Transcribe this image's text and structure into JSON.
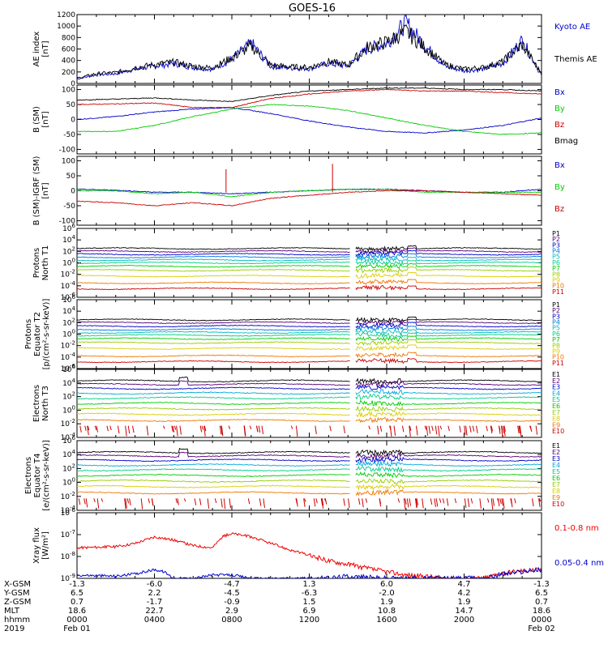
{
  "title": "GOES-16",
  "chart_data": [
    {
      "type": "line",
      "ylabel": "AE index [nT]",
      "ylim": [
        0,
        1200
      ],
      "yticks": [
        "0",
        "200",
        "400",
        "600",
        "800",
        "1000",
        "1200"
      ],
      "series": [
        {
          "name": "Kyoto AE",
          "color": "#0000cc",
          "x": [
            0,
            1,
            2,
            3,
            4,
            5,
            6,
            7,
            8,
            9,
            10,
            11,
            12,
            13,
            14,
            15,
            16,
            17,
            18,
            19,
            20,
            21,
            22,
            23,
            24
          ],
          "values": [
            80,
            150,
            170,
            250,
            300,
            350,
            280,
            250,
            420,
            700,
            300,
            270,
            260,
            350,
            300,
            600,
            700,
            1050,
            650,
            300,
            220,
            250,
            350,
            750,
            150
          ]
        },
        {
          "name": "Themis AE",
          "color": "#000000",
          "x": [
            0,
            1,
            2,
            3,
            4,
            5,
            6,
            7,
            8,
            9,
            10,
            11,
            12,
            13,
            14,
            15,
            16,
            17,
            18,
            19,
            20,
            21,
            22,
            23,
            24
          ],
          "values": [
            90,
            170,
            190,
            270,
            330,
            370,
            300,
            270,
            450,
            650,
            320,
            290,
            280,
            380,
            320,
            630,
            720,
            900,
            620,
            330,
            250,
            280,
            380,
            680,
            170
          ]
        }
      ]
    },
    {
      "type": "line",
      "ylabel": "B (SM) [nT]",
      "ylim": [
        -115,
        115
      ],
      "yticks": [
        "-100",
        "-50",
        "0",
        "50",
        "100"
      ],
      "series": [
        {
          "name": "Bx",
          "color": "#0000cc",
          "x": [
            0,
            2,
            4,
            6,
            8,
            10,
            12,
            14,
            16,
            18,
            20,
            22,
            24
          ],
          "values": [
            0,
            10,
            25,
            35,
            40,
            20,
            -5,
            -25,
            -40,
            -45,
            -35,
            -20,
            5
          ]
        },
        {
          "name": "By",
          "color": "#00cc00",
          "x": [
            0,
            2,
            4,
            6,
            8,
            10,
            12,
            14,
            16,
            18,
            20,
            22,
            24
          ],
          "values": [
            -40,
            -40,
            -20,
            10,
            35,
            50,
            45,
            30,
            5,
            -20,
            -40,
            -50,
            -45
          ]
        },
        {
          "name": "Bz",
          "color": "#cc0000",
          "x": [
            0,
            2,
            4,
            6,
            8,
            10,
            12,
            14,
            16,
            18,
            20,
            22,
            24
          ],
          "values": [
            50,
            52,
            55,
            40,
            40,
            70,
            85,
            95,
            100,
            95,
            95,
            90,
            85
          ]
        },
        {
          "name": "Bmag",
          "color": "#000000",
          "x": [
            0,
            2,
            4,
            6,
            8,
            10,
            12,
            14,
            16,
            18,
            20,
            22,
            24
          ],
          "values": [
            65,
            68,
            72,
            65,
            60,
            80,
            95,
            100,
            105,
            105,
            100,
            100,
            95
          ]
        }
      ]
    },
    {
      "type": "line",
      "ylabel": "B (SM)-IGRF (SM) [nT]",
      "ylim": [
        -115,
        115
      ],
      "yticks": [
        "-100",
        "-50",
        "0",
        "50",
        "100"
      ],
      "series": [
        {
          "name": "Bx",
          "color": "#0000cc",
          "x": [
            0,
            2,
            4,
            6,
            8,
            10,
            12,
            14,
            16,
            18,
            20,
            22,
            24
          ],
          "values": [
            5,
            2,
            -5,
            -5,
            -10,
            -5,
            0,
            5,
            5,
            0,
            -5,
            -5,
            5
          ]
        },
        {
          "name": "By",
          "color": "#00cc00",
          "x": [
            0,
            2,
            4,
            6,
            8,
            10,
            12,
            14,
            16,
            18,
            20,
            22,
            24
          ],
          "values": [
            0,
            0,
            -10,
            -5,
            -20,
            -5,
            0,
            5,
            5,
            -5,
            -5,
            -5,
            -5
          ]
        },
        {
          "name": "Bz",
          "color": "#cc0000",
          "x": [
            0,
            2,
            4,
            6,
            8,
            10,
            12,
            14,
            16,
            18,
            20,
            22,
            24
          ],
          "values": [
            -35,
            -40,
            -50,
            -40,
            -50,
            -25,
            -15,
            -5,
            0,
            0,
            -5,
            -10,
            -15
          ]
        }
      ]
    },
    {
      "type": "line",
      "ylabel": "Protons North T1",
      "log_scale": true,
      "ylim_exp": [
        -6,
        6
      ],
      "yticks": [
        "10^-6",
        "10^-4",
        "10^-2",
        "10^0",
        "10^2",
        "10^4",
        "10^6"
      ],
      "data_gap_hours": [
        14.1,
        14.4
      ],
      "channels": [
        "P1",
        "P2",
        "P3",
        "P4",
        "P5",
        "P6",
        "P7",
        "P8",
        "P9",
        "P10",
        "P11"
      ],
      "channel_colors": [
        "#000000",
        "#550077",
        "#0000cc",
        "#0077dd",
        "#00bbbb",
        "#00cc88",
        "#00cc00",
        "#99cc00",
        "#ddcc00",
        "#ee7700",
        "#cc0000"
      ],
      "levels_exp": [
        2.5,
        2.0,
        1.5,
        1.0,
        0.5,
        0.0,
        -0.6,
        -1.3,
        -2.3,
        -3.5,
        -4.5
      ]
    },
    {
      "type": "line",
      "ylabel": "Protons Equator T2",
      "unit_label": "[p/(cm²-s-sr-keV)]",
      "log_scale": true,
      "ylim_exp": [
        -6,
        6
      ],
      "yticks": [
        "10^-6",
        "10^-4",
        "10^-2",
        "10^0",
        "10^2",
        "10^4",
        "10^6"
      ],
      "data_gap_hours": [
        14.1,
        14.4
      ],
      "channels": [
        "P1",
        "P2",
        "P3",
        "P4",
        "P5",
        "P6",
        "P7",
        "P8",
        "P9",
        "P10",
        "P11"
      ],
      "channel_colors": [
        "#000000",
        "#550077",
        "#0000cc",
        "#0077dd",
        "#00bbbb",
        "#00cc88",
        "#00cc00",
        "#99cc00",
        "#ddcc00",
        "#ee7700",
        "#cc0000"
      ],
      "levels_exp": [
        2.5,
        2.0,
        1.4,
        0.8,
        0.3,
        -0.2,
        -0.8,
        -1.5,
        -2.5,
        -3.8,
        -4.8
      ]
    },
    {
      "type": "line",
      "ylabel": "Electrons North T3",
      "log_scale": true,
      "ylim_exp": [
        -4,
        6
      ],
      "yticks": [
        "10^-4",
        "10^-2",
        "10^0",
        "10^2",
        "10^4",
        "10^6"
      ],
      "data_gap_hours": [
        14.1,
        14.4
      ],
      "channels": [
        "E1",
        "E2",
        "E3",
        "E4",
        "E5",
        "E6",
        "E7",
        "E8",
        "E9",
        "E10"
      ],
      "channel_colors": [
        "#000000",
        "#550077",
        "#0000cc",
        "#00aadd",
        "#00cc88",
        "#00cc00",
        "#99cc00",
        "#ddcc00",
        "#ee7700",
        "#cc0000"
      ],
      "levels_exp": [
        4.3,
        3.8,
        3.2,
        2.5,
        1.8,
        1.0,
        0.2,
        -0.6,
        -1.5,
        -2.3
      ]
    },
    {
      "type": "line",
      "ylabel": "Electrons Equator T4",
      "unit_label": "[e/(cm²-s-sr-keV)]",
      "log_scale": true,
      "ylim_exp": [
        -4,
        6
      ],
      "yticks": [
        "10^-4",
        "10^-2",
        "10^0",
        "10^2",
        "10^4",
        "10^6"
      ],
      "data_gap_hours": [
        14.1,
        14.4
      ],
      "channels": [
        "E1",
        "E2",
        "E3",
        "E4",
        "E5",
        "E6",
        "E7",
        "E8",
        "E9",
        "E10"
      ],
      "channel_colors": [
        "#000000",
        "#550077",
        "#0000cc",
        "#00aadd",
        "#00cc88",
        "#00cc00",
        "#99cc00",
        "#ddcc00",
        "#ee7700",
        "#cc0000"
      ],
      "levels_exp": [
        4.3,
        3.8,
        3.2,
        2.5,
        1.8,
        1.0,
        0.2,
        -0.6,
        -1.5,
        -2.3
      ]
    },
    {
      "type": "line",
      "ylabel": "Xray flux [W/m²]",
      "log_scale": true,
      "ylim_exp": [
        -9,
        -6
      ],
      "yticks": [
        "10^-9",
        "10^-8",
        "10^-7",
        "10^-6"
      ],
      "series": [
        {
          "name": "0.1-0.8 nm",
          "color": "#ee0000",
          "x": [
            0,
            2,
            3,
            4,
            5,
            6,
            7,
            7.5,
            8,
            9,
            10,
            11,
            12,
            13,
            14,
            15,
            16,
            17,
            18,
            19,
            20,
            21,
            22,
            23,
            24
          ],
          "values_exp": [
            -7.6,
            -7.55,
            -7.4,
            -7.1,
            -7.25,
            -7.5,
            -7.6,
            -7.1,
            -6.95,
            -7.1,
            -7.4,
            -7.7,
            -7.95,
            -8.2,
            -8.35,
            -8.55,
            -8.7,
            -8.85,
            -8.9,
            -9.0,
            -9.0,
            -9.0,
            -8.75,
            -8.65,
            -8.6
          ]
        },
        {
          "name": "0.05-0.4 nm",
          "color": "#0000cc",
          "x": [
            0,
            2,
            3,
            4,
            4.5,
            5,
            6,
            7,
            8,
            9,
            10,
            11,
            12,
            13,
            14,
            15,
            16,
            17,
            18,
            19,
            20,
            21,
            22,
            23,
            24
          ],
          "values_exp": [
            -8.85,
            -8.9,
            -8.8,
            -8.6,
            -8.7,
            -9.0,
            -9.0,
            -8.85,
            -8.85,
            -9.0,
            -9.0,
            -9.0,
            -9.0,
            -9.0,
            -8.9,
            -8.95,
            -9.0,
            -9.0,
            -9.0,
            -9.0,
            -9.0,
            -9.0,
            -8.8,
            -8.7,
            -8.6
          ]
        }
      ]
    }
  ],
  "x_axis": {
    "hours": [
      0,
      4,
      8,
      12,
      16,
      20,
      24
    ],
    "row_labels": [
      "X-GSM",
      "Y-GSM",
      "Z-GSM",
      "MLT",
      "hhmm",
      "2019"
    ],
    "rows": [
      [
        "-1.3",
        "-6.0",
        "-4.7",
        "1.3",
        "6.0",
        "4.7",
        "-1.3"
      ],
      [
        "6.5",
        "2.2",
        "-4.5",
        "-6.3",
        "-2.0",
        "4.2",
        "6.5"
      ],
      [
        "0.7",
        "-1.7",
        "-0.9",
        "1.5",
        "1.9",
        "1.9",
        "0.7"
      ],
      [
        "18.6",
        "22.7",
        "2.9",
        "6.9",
        "10.8",
        "14.7",
        "18.6"
      ],
      [
        "0000",
        "0400",
        "0800",
        "1200",
        "1600",
        "2000",
        "0000"
      ]
    ],
    "date_start": "Feb 01",
    "date_end": "Feb 02"
  }
}
